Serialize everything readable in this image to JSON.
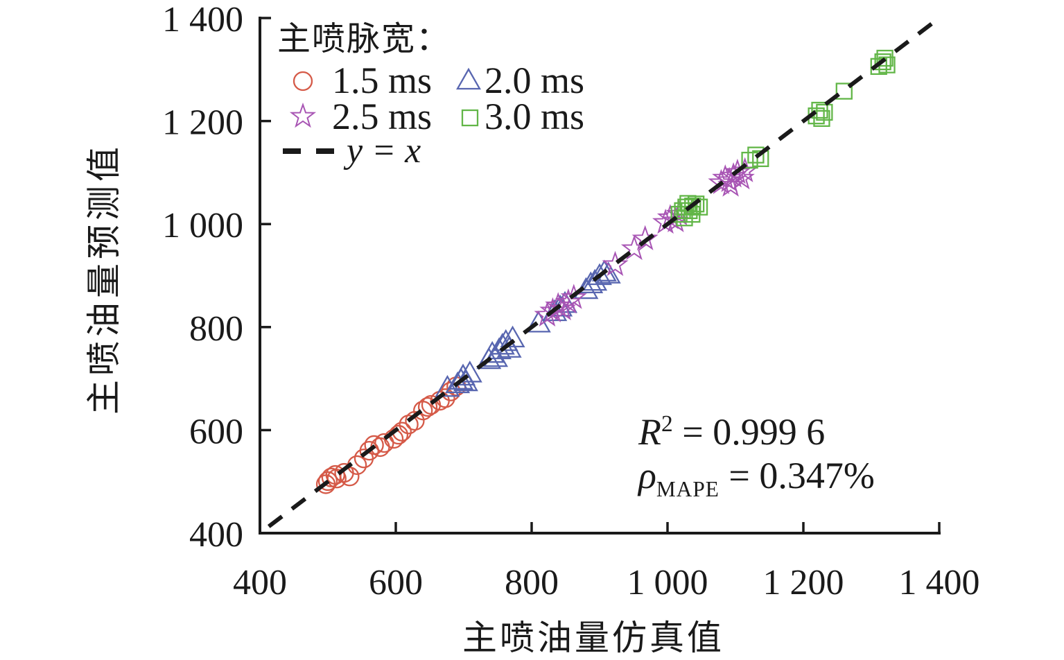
{
  "figure": {
    "y_axis_label": "主喷油量预测值",
    "x_axis_label": "主喷油量仿真值",
    "legend": {
      "title": "主喷脉宽：",
      "items": [
        {
          "label": "1.5 ms",
          "marker": "circle-marker-icon",
          "shape": "circle",
          "color": "#d55a48"
        },
        {
          "label": "2.0 ms",
          "marker": "triangle-marker-icon",
          "shape": "triangle",
          "color": "#5866b0"
        },
        {
          "label": "2.5 ms",
          "marker": "star-marker-icon",
          "shape": "star",
          "color": "#a855b4"
        },
        {
          "label": "3.0 ms",
          "marker": "square-marker-icon",
          "shape": "square",
          "color": "#62b648"
        },
        {
          "label": "y = x",
          "marker": "dash-line-icon",
          "shape": "dash",
          "color": "#1a1a1a"
        }
      ]
    },
    "annotations": {
      "r2_symbol": "R",
      "r2_sup": "2",
      "r2_rest": " = 0.999 6",
      "rho_symbol": "ρ",
      "rho_sub": "MAPE",
      "rho_rest": " = 0.347%"
    }
  },
  "chart_data": {
    "type": "scatter",
    "title": "",
    "xlabel": "主喷油量仿真值",
    "ylabel": "主喷油量预测值",
    "xlim": [
      400,
      1400
    ],
    "ylim": [
      400,
      1400
    ],
    "grid": false,
    "legend_position": "upper-left-inside",
    "x_ticks": [
      400,
      600,
      800,
      1000,
      1200,
      1400
    ],
    "x_tick_labels": [
      "400",
      "600",
      "800",
      "1 000",
      "1 200",
      "1 400"
    ],
    "y_ticks": [
      400,
      600,
      800,
      1000,
      1200,
      1400
    ],
    "y_tick_labels": [
      "400",
      "600",
      "800",
      "1 000",
      "1 200",
      "1 400"
    ],
    "identity_line": {
      "label": "y = x",
      "from": 413,
      "to": 1392,
      "color": "#1a1a1a"
    },
    "axis_color": "#1a1a1a",
    "series": [
      {
        "name": "1.5 ms",
        "shape": "circle",
        "color": "#d55a48",
        "points": [
          [
            497,
            495
          ],
          [
            500,
            501
          ],
          [
            505,
            508
          ],
          [
            511,
            513
          ],
          [
            513,
            506
          ],
          [
            524,
            517
          ],
          [
            532,
            510
          ],
          [
            543,
            532
          ],
          [
            553,
            545
          ],
          [
            561,
            560
          ],
          [
            568,
            571
          ],
          [
            577,
            567
          ],
          [
            583,
            575
          ],
          [
            597,
            583
          ],
          [
            604,
            591
          ],
          [
            609,
            597
          ],
          [
            619,
            611
          ],
          [
            628,
            618
          ],
          [
            640,
            638
          ],
          [
            647,
            645
          ],
          [
            652,
            649
          ],
          [
            665,
            657
          ],
          [
            673,
            662
          ],
          [
            681,
            675
          ],
          [
            689,
            685
          ]
        ]
      },
      {
        "name": "2.0 ms",
        "shape": "triangle",
        "color": "#5866b0",
        "points": [
          [
            676,
            681
          ],
          [
            691,
            688
          ],
          [
            696,
            695
          ],
          [
            699,
            703
          ],
          [
            703,
            692
          ],
          [
            709,
            709
          ],
          [
            737,
            735
          ],
          [
            742,
            747
          ],
          [
            747,
            739
          ],
          [
            752,
            754
          ],
          [
            757,
            763
          ],
          [
            762,
            770
          ],
          [
            767,
            757
          ],
          [
            772,
            777
          ],
          [
            810,
            806
          ],
          [
            834,
            828
          ],
          [
            842,
            837
          ],
          [
            849,
            844
          ],
          [
            880,
            871
          ],
          [
            887,
            882
          ],
          [
            893,
            887
          ],
          [
            900,
            898
          ],
          [
            907,
            905
          ],
          [
            913,
            901
          ]
        ]
      },
      {
        "name": "2.5 ms",
        "shape": "star",
        "color": "#a855b4",
        "points": [
          [
            823,
            823
          ],
          [
            831,
            831
          ],
          [
            839,
            841
          ],
          [
            846,
            835
          ],
          [
            854,
            848
          ],
          [
            862,
            857
          ],
          [
            923,
            921
          ],
          [
            951,
            952
          ],
          [
            967,
            971
          ],
          [
            997,
            1003
          ],
          [
            1004,
            1012
          ],
          [
            1012,
            1006
          ],
          [
            1017,
            1019
          ],
          [
            1079,
            1080
          ],
          [
            1085,
            1089
          ],
          [
            1091,
            1084
          ],
          [
            1093,
            1075
          ],
          [
            1097,
            1093
          ],
          [
            1103,
            1100
          ],
          [
            1109,
            1089
          ],
          [
            1114,
            1103
          ]
        ]
      },
      {
        "name": "3.0 ms",
        "shape": "square",
        "color": "#62b648",
        "points": [
          [
            1017,
            1019
          ],
          [
            1022,
            1026
          ],
          [
            1025,
            1012
          ],
          [
            1027,
            1033
          ],
          [
            1030,
            1040
          ],
          [
            1032,
            1026
          ],
          [
            1036,
            1019
          ],
          [
            1037,
            1035
          ],
          [
            1042,
            1039
          ],
          [
            1047,
            1033
          ],
          [
            1121,
            1124
          ],
          [
            1130,
            1134
          ],
          [
            1137,
            1127
          ],
          [
            1219,
            1210
          ],
          [
            1224,
            1221
          ],
          [
            1227,
            1205
          ],
          [
            1231,
            1217
          ],
          [
            1260,
            1258
          ],
          [
            1311,
            1306
          ],
          [
            1317,
            1315
          ],
          [
            1320,
            1322
          ],
          [
            1323,
            1309
          ]
        ]
      }
    ],
    "stats": {
      "R2": "0.999 6",
      "MAPE": "0.347%"
    }
  }
}
